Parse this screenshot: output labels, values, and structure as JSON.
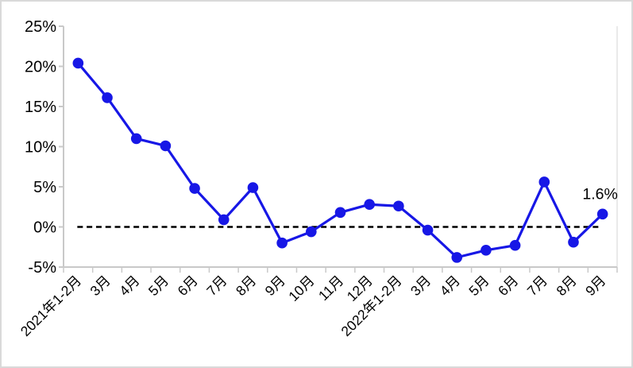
{
  "frame": {
    "background": "#ffffff",
    "border_color": "#d9d9d9"
  },
  "chart_data": {
    "type": "line",
    "title": "",
    "xlabel": "",
    "ylabel": "",
    "categories": [
      "2021年1-2月",
      "3月",
      "4月",
      "5月",
      "6月",
      "7月",
      "8月",
      "9月",
      "10月",
      "11月",
      "12月",
      "2022年1-2月",
      "3月",
      "4月",
      "5月",
      "6月",
      "7月",
      "8月",
      "9月"
    ],
    "series": [
      {
        "name": "",
        "values": [
          20.4,
          16.1,
          11.0,
          10.1,
          4.8,
          0.9,
          4.9,
          -2.0,
          -0.6,
          1.8,
          2.8,
          2.6,
          -0.4,
          -3.8,
          -2.9,
          -2.3,
          5.6,
          -1.9,
          1.6
        ]
      }
    ],
    "ylim": [
      -5,
      25
    ],
    "ytick_values": [
      25,
      20,
      15,
      10,
      5,
      0,
      -5
    ],
    "ytick_labels": [
      "25%",
      "20%",
      "15%",
      "10%",
      "5%",
      "0%",
      "-5%"
    ],
    "grid": false,
    "legend": null,
    "zero_line": {
      "value": 0,
      "style": "dashed",
      "color": "#000000"
    },
    "annotation": {
      "text": "1.6%",
      "index": 18
    },
    "colors": {
      "line": "#1717e6",
      "marker": "#1717e6",
      "axis": "#c9c9c9",
      "text": "#000000"
    }
  }
}
